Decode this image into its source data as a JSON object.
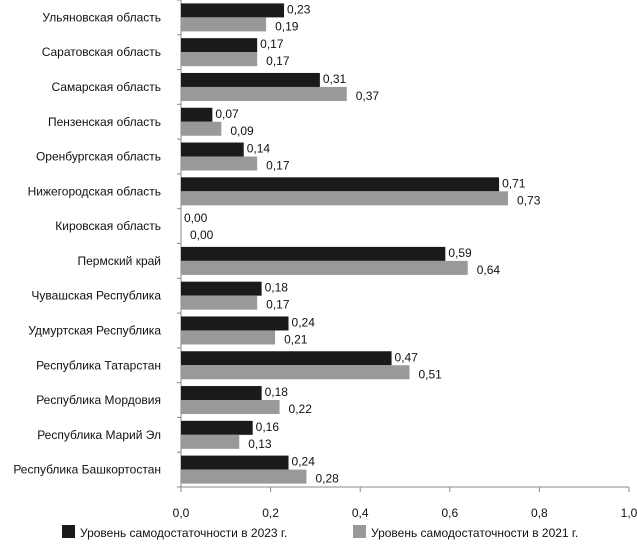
{
  "chart_data": {
    "type": "bar",
    "orientation": "horizontal",
    "title": "",
    "xlabel": "",
    "ylabel": "",
    "xlim": [
      0,
      1.0
    ],
    "x_ticks": [
      0,
      0.2,
      0.4,
      0.6,
      0.8,
      1.0
    ],
    "x_tick_labels": [
      "0,0",
      "0,2",
      "0,4",
      "0,6",
      "0,8",
      "1,0"
    ],
    "grid": false,
    "legend_position": "bottom",
    "categories": [
      "Ульяновская область",
      "Саратовская область",
      "Самарская область",
      "Пензенская область",
      "Оренбургская область",
      "Нижегородская область",
      "Кировская область",
      "Пермский край",
      "Чувашская Республика",
      "Удмуртская Республика",
      "Республика Татарстан",
      "Республика Мордовия",
      "Республика Марий Эл",
      "Республика Башкортостан"
    ],
    "series": [
      {
        "name": "Уровень самодостаточности в 2023 г.",
        "color": "#1a1a1a",
        "values": [
          0.23,
          0.17,
          0.31,
          0.07,
          0.14,
          0.71,
          0.0,
          0.59,
          0.18,
          0.24,
          0.47,
          0.18,
          0.16,
          0.24
        ],
        "labels": [
          "0,23",
          "0,17",
          "0,31",
          "0,07",
          "0,14",
          "0,71",
          "0,00",
          "0,59",
          "0,18",
          "0,24",
          "0,47",
          "0,18",
          "0,16",
          "0,24"
        ]
      },
      {
        "name": "Уровень самодостаточности в 2021 г.",
        "color": "#999999",
        "values": [
          0.19,
          0.17,
          0.37,
          0.09,
          0.17,
          0.73,
          0.0,
          0.64,
          0.17,
          0.21,
          0.51,
          0.22,
          0.13,
          0.28
        ],
        "labels": [
          "0,19",
          "0,17",
          "0,37",
          "0,09",
          "0,17",
          "0,73",
          "0,00",
          "0,64",
          "0,17",
          "0,21",
          "0,51",
          "0,22",
          "0,13",
          "0,28"
        ]
      }
    ]
  }
}
